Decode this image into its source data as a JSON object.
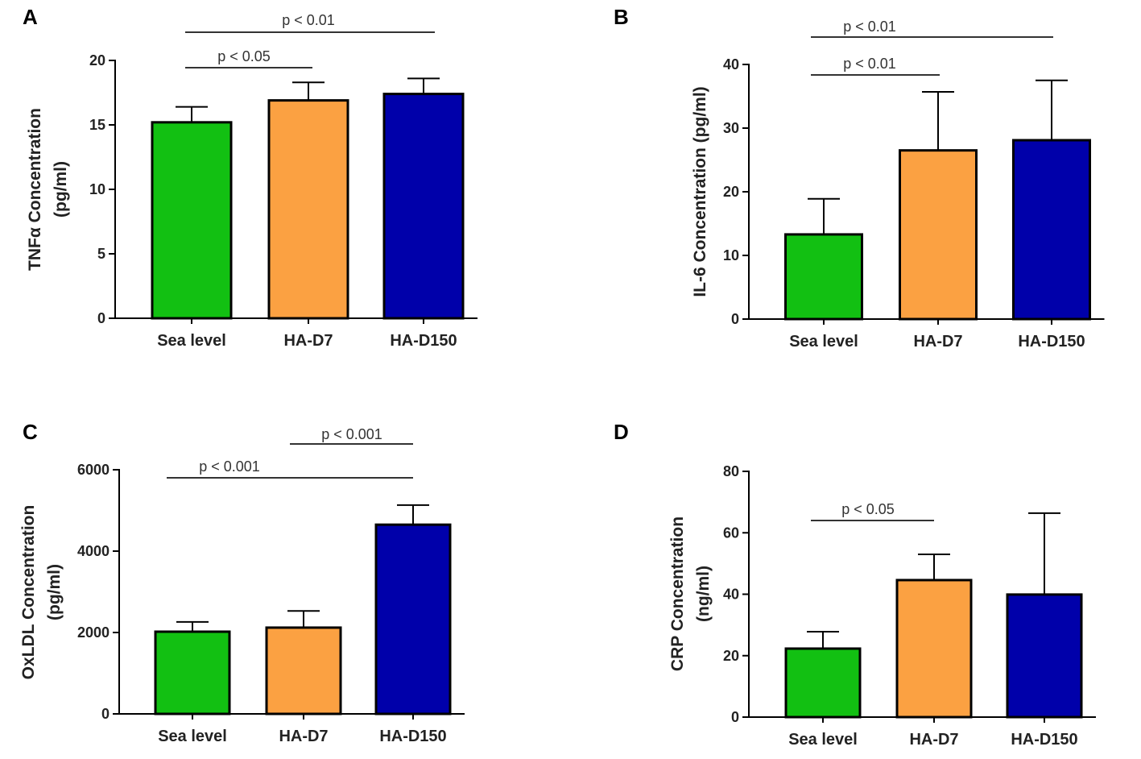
{
  "chart_data": [
    {
      "panel": "A",
      "type": "bar",
      "categories": [
        "Sea level",
        "HA-D7",
        "HA-D150"
      ],
      "values": [
        15.2,
        16.9,
        17.4
      ],
      "error_upper": [
        16.4,
        18.3,
        18.6
      ],
      "ylabel": [
        "TNFα Concentration",
        "(pg/ml)"
      ],
      "ylim": [
        0,
        20
      ],
      "yticks": [
        "0",
        "5",
        "10",
        "15",
        "20"
      ],
      "ytick_values": [
        0,
        5,
        10,
        15,
        20
      ],
      "significance": [
        {
          "from": 0,
          "to": 1,
          "label": "p < 0.05"
        },
        {
          "from": 0,
          "to": 2,
          "label": "p < 0.01"
        }
      ]
    },
    {
      "panel": "B",
      "type": "bar",
      "categories": [
        "Sea level",
        "HA-D7",
        "HA-D150"
      ],
      "values": [
        13.3,
        26.5,
        28.1
      ],
      "error_upper": [
        18.9,
        35.7,
        37.5
      ],
      "ylabel": [
        "IL-6 Concentration (pg/ml)"
      ],
      "ylim": [
        0,
        40
      ],
      "yticks": [
        "0",
        "10",
        "20",
        "30",
        "40"
      ],
      "ytick_values": [
        0,
        10,
        20,
        30,
        40
      ],
      "significance": [
        {
          "from": 0,
          "to": 1,
          "label": "p < 0.01"
        },
        {
          "from": 0,
          "to": 2,
          "label": "p < 0.01"
        }
      ]
    },
    {
      "panel": "C",
      "type": "bar",
      "categories": [
        "Sea level",
        "HA-D7",
        "HA-D150"
      ],
      "values": [
        2020,
        2120,
        4650
      ],
      "error_upper": [
        2260,
        2530,
        5130
      ],
      "ylabel": [
        "OxLDL Concentration",
        "(pg/ml)"
      ],
      "ylim": [
        0,
        6000
      ],
      "yticks": [
        "0",
        "2000",
        "4000",
        "6000"
      ],
      "ytick_values": [
        0,
        2000,
        4000,
        6000
      ],
      "significance": [
        {
          "from": 0,
          "to": 2,
          "label": "p < 0.001"
        },
        {
          "from": 1,
          "to": 2,
          "label": "p < 0.001"
        }
      ]
    },
    {
      "panel": "D",
      "type": "bar",
      "categories": [
        "Sea level",
        "HA-D7",
        "HA-D150"
      ],
      "values": [
        22.3,
        44.6,
        39.9
      ],
      "error_upper": [
        27.8,
        53.0,
        66.4
      ],
      "ylabel": [
        "CRP Concentration",
        "(ng/ml)"
      ],
      "ylim": [
        0,
        80
      ],
      "yticks": [
        "0",
        "20",
        "40",
        "60",
        "80"
      ],
      "ytick_values": [
        0,
        20,
        40,
        60,
        80
      ],
      "significance": [
        {
          "from": 0,
          "to": 1,
          "label": "p < 0.05"
        }
      ]
    }
  ],
  "colors": {
    "Sea level": "#12c012",
    "HA-D7": "#fba142",
    "HA-D150": "#0000aa"
  }
}
